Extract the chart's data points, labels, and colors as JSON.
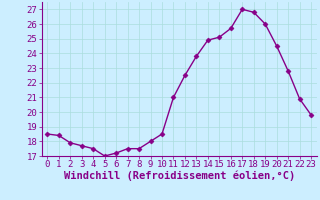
{
  "x": [
    0,
    1,
    2,
    3,
    4,
    5,
    6,
    7,
    8,
    9,
    10,
    11,
    12,
    13,
    14,
    15,
    16,
    17,
    18,
    19,
    20,
    21,
    22,
    23
  ],
  "y": [
    18.5,
    18.4,
    17.9,
    17.7,
    17.5,
    17.0,
    17.2,
    17.5,
    17.5,
    18.0,
    18.5,
    21.0,
    22.5,
    23.8,
    24.9,
    25.1,
    25.7,
    27.0,
    26.8,
    26.0,
    24.5,
    22.8,
    20.9,
    19.8
  ],
  "line_color": "#880088",
  "marker": "D",
  "markersize": 2.5,
  "linewidth": 1.0,
  "xlabel": "Windchill (Refroidissement éolien,°C)",
  "xlabel_fontsize": 7.5,
  "ylim": [
    17,
    27.5
  ],
  "xlim": [
    -0.5,
    23.5
  ],
  "yticks": [
    17,
    18,
    19,
    20,
    21,
    22,
    23,
    24,
    25,
    26,
    27
  ],
  "xticks": [
    0,
    1,
    2,
    3,
    4,
    5,
    6,
    7,
    8,
    9,
    10,
    11,
    12,
    13,
    14,
    15,
    16,
    17,
    18,
    19,
    20,
    21,
    22,
    23
  ],
  "tick_fontsize": 6.5,
  "background_color": "#cceeff",
  "grid_color": "#aadddd",
  "grid_linewidth": 0.5
}
